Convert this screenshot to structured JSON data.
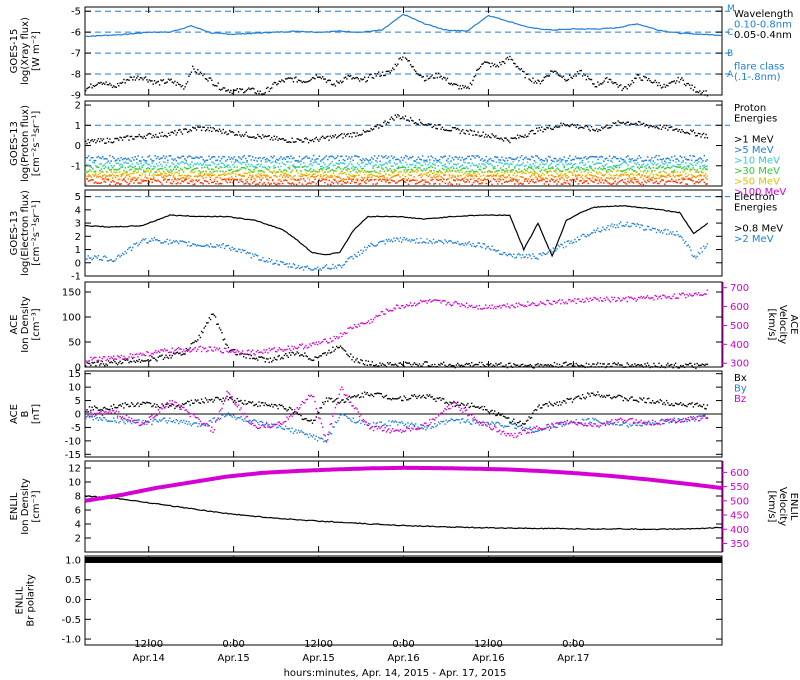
{
  "colors": {
    "axis": "#000000",
    "black": "#000000",
    "blue": "#1e7fd8",
    "cyan": "#33cccc",
    "magenta": "#d400d4",
    "green": "#33cc33",
    "yellow": "#e0c000",
    "orange": "#ff8800",
    "red": "#ff3300",
    "dash": "#1e7fd8"
  },
  "chart_data": [
    {
      "id": "xray",
      "type": "line",
      "ylabel_lines": [
        "GOES-15",
        "log(Xray flux)",
        "[W m⁻²]"
      ],
      "ylim": [
        -9,
        -4.8
      ],
      "yticks": [
        -9,
        -8,
        -7,
        -6,
        -5
      ],
      "dashed_levels": [
        -8,
        -7,
        -6,
        -5
      ],
      "class_labels": [
        {
          "label": "M",
          "y": -4.85
        },
        {
          "label": "C",
          "y": -6.0
        },
        {
          "label": "B",
          "y": -7.0
        },
        {
          "label": "A",
          "y": -8.0
        }
      ],
      "legend": [
        {
          "text": "Wavelength",
          "color": "black"
        },
        {
          "text": "0.10-0.8nm",
          "color": "blue"
        },
        {
          "text": "0.05-0.4nm",
          "color": "black"
        },
        {
          "text": "",
          "color": "black"
        },
        {
          "text": "",
          "color": "black"
        },
        {
          "text": "flare class",
          "color": "blue"
        },
        {
          "text": "(.1-.8nm)",
          "color": "blue"
        }
      ],
      "series": [
        {
          "color": "blue",
          "style": "line",
          "x": [
            0,
            3,
            6,
            9,
            12,
            15,
            18,
            21,
            24,
            27,
            30,
            33,
            36,
            39,
            42,
            45,
            48,
            51,
            54,
            57,
            60,
            63,
            66,
            69,
            72,
            75,
            78,
            81,
            84,
            87,
            90
          ],
          "values": [
            -6.2,
            -6.15,
            -6.1,
            -6.0,
            -6.0,
            -5.7,
            -6.05,
            -6.1,
            -6.05,
            -6.0,
            -5.95,
            -6.0,
            -5.95,
            -6.0,
            -5.9,
            -5.15,
            -5.6,
            -5.9,
            -5.95,
            -5.2,
            -5.5,
            -5.8,
            -5.9,
            -5.85,
            -5.85,
            -5.8,
            -5.6,
            -5.9,
            -6.05,
            -6.1,
            -6.15
          ]
        },
        {
          "color": "black",
          "style": "dots",
          "x": [
            0,
            2,
            4,
            6,
            8,
            10,
            12,
            14,
            15,
            17,
            19,
            21,
            23,
            25,
            27,
            29,
            31,
            33,
            35,
            37,
            39,
            41,
            43,
            45,
            46,
            48,
            50,
            52,
            54,
            56,
            58,
            60,
            62,
            64,
            66,
            68,
            70,
            72,
            74,
            76,
            78,
            80,
            82,
            84,
            86,
            88
          ],
          "values": [
            -8.7,
            -8.3,
            -8.6,
            -8.2,
            -8.1,
            -8.4,
            -8.3,
            -8.6,
            -7.7,
            -8.1,
            -8.6,
            -8.8,
            -8.7,
            -8.9,
            -8.4,
            -8.2,
            -8.3,
            -8.0,
            -8.5,
            -8.1,
            -8.3,
            -8.0,
            -7.9,
            -7.0,
            -7.6,
            -8.2,
            -8.0,
            -8.5,
            -8.7,
            -7.4,
            -7.6,
            -7.2,
            -8.0,
            -8.4,
            -7.8,
            -8.2,
            -7.9,
            -8.5,
            -8.2,
            -8.7,
            -8.1,
            -8.3,
            -8.6,
            -8.2,
            -8.7,
            -8.9
          ]
        }
      ]
    },
    {
      "id": "proton",
      "type": "scatter",
      "ylabel_lines": [
        "GOES-13",
        "log(Proton flux)",
        "[cm⁻²s⁻¹sr⁻¹]"
      ],
      "ylim": [
        -2,
        2.2
      ],
      "yticks": [
        -1,
        0,
        1,
        2
      ],
      "dashed_levels": [
        1
      ],
      "legend": [
        {
          "text": "Proton",
          "color": "black"
        },
        {
          "text": "Energies",
          "color": "black"
        },
        {
          "text": "",
          "color": "black"
        },
        {
          "text": ">1 MeV",
          "color": "black"
        },
        {
          "text": ">5 MeV",
          "color": "blue"
        },
        {
          "text": ">10 MeV",
          "color": "cyan"
        },
        {
          "text": ">30 MeV",
          "color": "green"
        },
        {
          "text": ">50 MeV",
          "color": "yellow"
        },
        {
          "text": ">100 MeV",
          "color": "magenta"
        }
      ],
      "series": [
        {
          "color": "black",
          "style": "dots",
          "x": [
            0,
            4,
            8,
            12,
            16,
            20,
            24,
            28,
            32,
            36,
            40,
            44,
            48,
            52,
            56,
            60,
            64,
            68,
            72,
            76,
            80,
            84,
            88
          ],
          "values": [
            0.2,
            0.3,
            0.5,
            0.6,
            0.9,
            0.7,
            0.5,
            0.3,
            0.3,
            0.5,
            0.7,
            1.5,
            1.1,
            0.8,
            0.6,
            0.3,
            0.8,
            1.1,
            0.8,
            1.2,
            1.0,
            0.8,
            0.5
          ]
        },
        {
          "color": "blue",
          "style": "band",
          "x": [
            0,
            88
          ],
          "values": [
            -0.6,
            -0.6
          ]
        },
        {
          "color": "cyan",
          "style": "band",
          "x": [
            0,
            88
          ],
          "values": [
            -0.9,
            -0.9
          ]
        },
        {
          "color": "green",
          "style": "band",
          "x": [
            0,
            88
          ],
          "values": [
            -1.15,
            -1.15
          ]
        },
        {
          "color": "yellow",
          "style": "band",
          "x": [
            0,
            88
          ],
          "values": [
            -1.35,
            -1.35
          ]
        },
        {
          "color": "orange",
          "style": "band",
          "x": [
            0,
            88
          ],
          "values": [
            -1.55,
            -1.55
          ]
        },
        {
          "color": "red",
          "style": "band",
          "x": [
            0,
            88
          ],
          "values": [
            -1.75,
            -1.75
          ]
        }
      ]
    },
    {
      "id": "electron",
      "type": "scatter",
      "ylabel_lines": [
        "GOES-13",
        "log(Electron flux)",
        "[cm⁻²s⁻¹sr⁻¹]"
      ],
      "ylim": [
        -1,
        5.5
      ],
      "yticks": [
        -1,
        0,
        1,
        2,
        3,
        4,
        5
      ],
      "dashed_levels": [
        5
      ],
      "legend": [
        {
          "text": "Electron",
          "color": "black"
        },
        {
          "text": "Energies",
          "color": "black"
        },
        {
          "text": "",
          "color": "black"
        },
        {
          "text": ">0.8 MeV",
          "color": "black"
        },
        {
          "text": ">2 MeV",
          "color": "blue"
        }
      ],
      "series": [
        {
          "color": "black",
          "style": "line",
          "x": [
            0,
            4,
            8,
            12,
            16,
            20,
            24,
            28,
            30,
            32,
            34,
            36,
            38,
            40,
            44,
            48,
            52,
            56,
            60,
            62,
            64,
            66,
            68,
            70,
            72,
            76,
            80,
            84,
            86,
            88
          ],
          "values": [
            2.8,
            2.7,
            2.8,
            3.6,
            3.5,
            3.5,
            3.2,
            2.5,
            1.7,
            0.8,
            0.6,
            0.8,
            2.5,
            3.5,
            3.5,
            3.3,
            3.5,
            3.6,
            3.6,
            1.0,
            3.0,
            0.5,
            3.2,
            3.8,
            4.2,
            4.3,
            4.1,
            3.8,
            2.2,
            3.0
          ]
        },
        {
          "color": "blue",
          "style": "dots",
          "x": [
            0,
            4,
            8,
            10,
            12,
            16,
            20,
            24,
            28,
            32,
            36,
            40,
            44,
            48,
            52,
            56,
            60,
            64,
            68,
            72,
            76,
            80,
            84,
            86,
            88
          ],
          "values": [
            0.5,
            0.3,
            1.7,
            1.8,
            1.6,
            1.4,
            1.3,
            0.5,
            -0.1,
            -0.4,
            -0.2,
            1.3,
            1.8,
            1.7,
            1.6,
            1.4,
            0.6,
            0.5,
            1.5,
            2.5,
            3.0,
            2.6,
            2.2,
            0.5,
            1.5
          ]
        }
      ]
    },
    {
      "id": "ace_density",
      "type": "scatter",
      "ylabel_lines": [
        "ACE",
        "Ion Density",
        "[cm⁻³]"
      ],
      "ylim": [
        0,
        170
      ],
      "yticks": [
        0,
        50,
        100,
        150
      ],
      "right_label_lines": [
        "ACE",
        "Velocity",
        "[km/s]"
      ],
      "right_ylim": [
        280,
        730
      ],
      "right_yticks": [
        300,
        400,
        500,
        600,
        700
      ],
      "series": [
        {
          "color": "black",
          "style": "dots",
          "axis": "left",
          "x": [
            0,
            5,
            10,
            14,
            16,
            18,
            20,
            22,
            24,
            26,
            28,
            30,
            32,
            34,
            36,
            38,
            40,
            44,
            48,
            52,
            56,
            60,
            64,
            68,
            72,
            76,
            80,
            84,
            88
          ],
          "values": [
            5,
            12,
            18,
            30,
            60,
            110,
            40,
            25,
            20,
            15,
            22,
            30,
            18,
            28,
            45,
            15,
            8,
            6,
            7,
            5,
            6,
            5,
            4,
            6,
            5,
            5,
            5,
            4,
            3
          ]
        },
        {
          "color": "magenta",
          "style": "dots",
          "axis": "right",
          "x": [
            0,
            4,
            8,
            12,
            16,
            20,
            24,
            28,
            32,
            34,
            36,
            38,
            40,
            42,
            44,
            48,
            52,
            56,
            60,
            64,
            68,
            72,
            76,
            80,
            84,
            88
          ],
          "values": [
            320,
            330,
            350,
            370,
            380,
            370,
            360,
            380,
            400,
            420,
            450,
            500,
            520,
            570,
            600,
            630,
            620,
            600,
            610,
            620,
            630,
            640,
            640,
            650,
            660,
            680
          ]
        }
      ]
    },
    {
      "id": "ace_mag",
      "type": "scatter",
      "ylabel_lines": [
        "ACE",
        "B",
        "[nT]"
      ],
      "ylim": [
        -16,
        16
      ],
      "yticks": [
        -15,
        -10,
        -5,
        0,
        5,
        10,
        15
      ],
      "zero_line": true,
      "legend": [
        {
          "text": "Bx",
          "color": "black"
        },
        {
          "text": "By",
          "color": "blue"
        },
        {
          "text": "Bz",
          "color": "magenta"
        }
      ],
      "series": [
        {
          "color": "black",
          "style": "dots",
          "x": [
            0,
            4,
            8,
            12,
            16,
            20,
            24,
            28,
            32,
            34,
            36,
            40,
            44,
            48,
            52,
            56,
            60,
            62,
            64,
            68,
            72,
            76,
            80,
            84,
            88
          ],
          "values": [
            2,
            3,
            4,
            3,
            5,
            6,
            4,
            3,
            -3,
            6,
            5,
            8,
            6,
            7,
            4,
            3,
            -2,
            -4,
            3,
            5,
            8,
            6,
            5,
            4,
            3
          ]
        },
        {
          "color": "blue",
          "style": "dots",
          "x": [
            0,
            4,
            8,
            12,
            16,
            20,
            24,
            28,
            32,
            34,
            36,
            40,
            44,
            48,
            52,
            56,
            60,
            62,
            64,
            68,
            72,
            76,
            80,
            84,
            88
          ],
          "values": [
            -1,
            -2,
            -3,
            -2,
            -4,
            0,
            -3,
            -5,
            -8,
            -10,
            0,
            -4,
            -3,
            -5,
            -2,
            -3,
            -4,
            -5,
            -6,
            -3,
            -2,
            -4,
            -3,
            -2,
            -1
          ]
        },
        {
          "color": "magenta",
          "style": "dots",
          "x": [
            0,
            4,
            8,
            12,
            16,
            18,
            20,
            24,
            28,
            32,
            34,
            36,
            40,
            44,
            48,
            52,
            56,
            60,
            64,
            68,
            72,
            76,
            80,
            84,
            88
          ],
          "values": [
            0,
            1,
            -4,
            5,
            -2,
            -6,
            8,
            -5,
            -3,
            8,
            -10,
            10,
            -5,
            -6,
            -4,
            4,
            -3,
            -8,
            -5,
            -3,
            -4,
            -2,
            -3,
            -2,
            -1
          ]
        }
      ]
    },
    {
      "id": "enlil_density",
      "type": "line",
      "ylabel_lines": [
        "ENLIL",
        "Ion Density",
        "[cm⁻³]"
      ],
      "ylim": [
        0,
        13
      ],
      "yticks": [
        2,
        4,
        6,
        8,
        10,
        12
      ],
      "right_label_lines": [
        "ENLIL",
        "Velocity",
        "[km/s]"
      ],
      "right_ylim": [
        320,
        640
      ],
      "right_yticks": [
        350,
        400,
        450,
        500,
        550,
        600
      ],
      "series": [
        {
          "color": "black",
          "style": "line",
          "axis": "left",
          "x": [
            0,
            5,
            10,
            15,
            20,
            25,
            30,
            35,
            40,
            45,
            50,
            55,
            60,
            65,
            70,
            75,
            80,
            85,
            90
          ],
          "values": [
            8,
            7.6,
            6.9,
            6.2,
            5.5,
            5.0,
            4.6,
            4.3,
            4.0,
            3.8,
            3.6,
            3.5,
            3.4,
            3.35,
            3.3,
            3.3,
            3.25,
            3.3,
            3.5
          ]
        },
        {
          "color": "magenta",
          "style": "thick",
          "axis": "right",
          "x": [
            0,
            5,
            10,
            15,
            20,
            25,
            30,
            35,
            40,
            45,
            50,
            55,
            60,
            65,
            70,
            75,
            80,
            85,
            90
          ],
          "values": [
            500,
            520,
            545,
            565,
            585,
            598,
            605,
            610,
            614,
            616,
            615,
            613,
            610,
            604,
            596,
            586,
            574,
            560,
            545
          ]
        }
      ]
    },
    {
      "id": "enlil_polarity",
      "type": "line",
      "ylabel_lines": [
        "ENLIL",
        "Br polarity"
      ],
      "ylim": [
        -1.15,
        1.1
      ],
      "yticks": [
        -1.0,
        -0.5,
        0.0,
        0.5,
        1.0
      ],
      "ytick_labels": [
        "-1.0",
        "-0.5",
        "0.0",
        "0.5",
        "1.0"
      ],
      "series": [
        {
          "color": "black",
          "style": "bar",
          "x": [
            0,
            90
          ],
          "values": [
            1.0,
            1.0
          ]
        }
      ]
    }
  ],
  "xaxis": {
    "xlim": [
      0,
      90
    ],
    "ticks": [
      {
        "x": 9,
        "time": "12:00",
        "date": "Apr.14"
      },
      {
        "x": 21,
        "time": "0:00",
        "date": "Apr.15"
      },
      {
        "x": 33,
        "time": "12:00",
        "date": "Apr.15"
      },
      {
        "x": 45,
        "time": "0:00",
        "date": "Apr.16"
      },
      {
        "x": 57,
        "time": "12:00",
        "date": "Apr.16"
      },
      {
        "x": 69,
        "time": "0:00",
        "date": "Apr.17"
      }
    ],
    "label": "hours:minutes, Apr. 14, 2015 - Apr. 17, 2015"
  }
}
